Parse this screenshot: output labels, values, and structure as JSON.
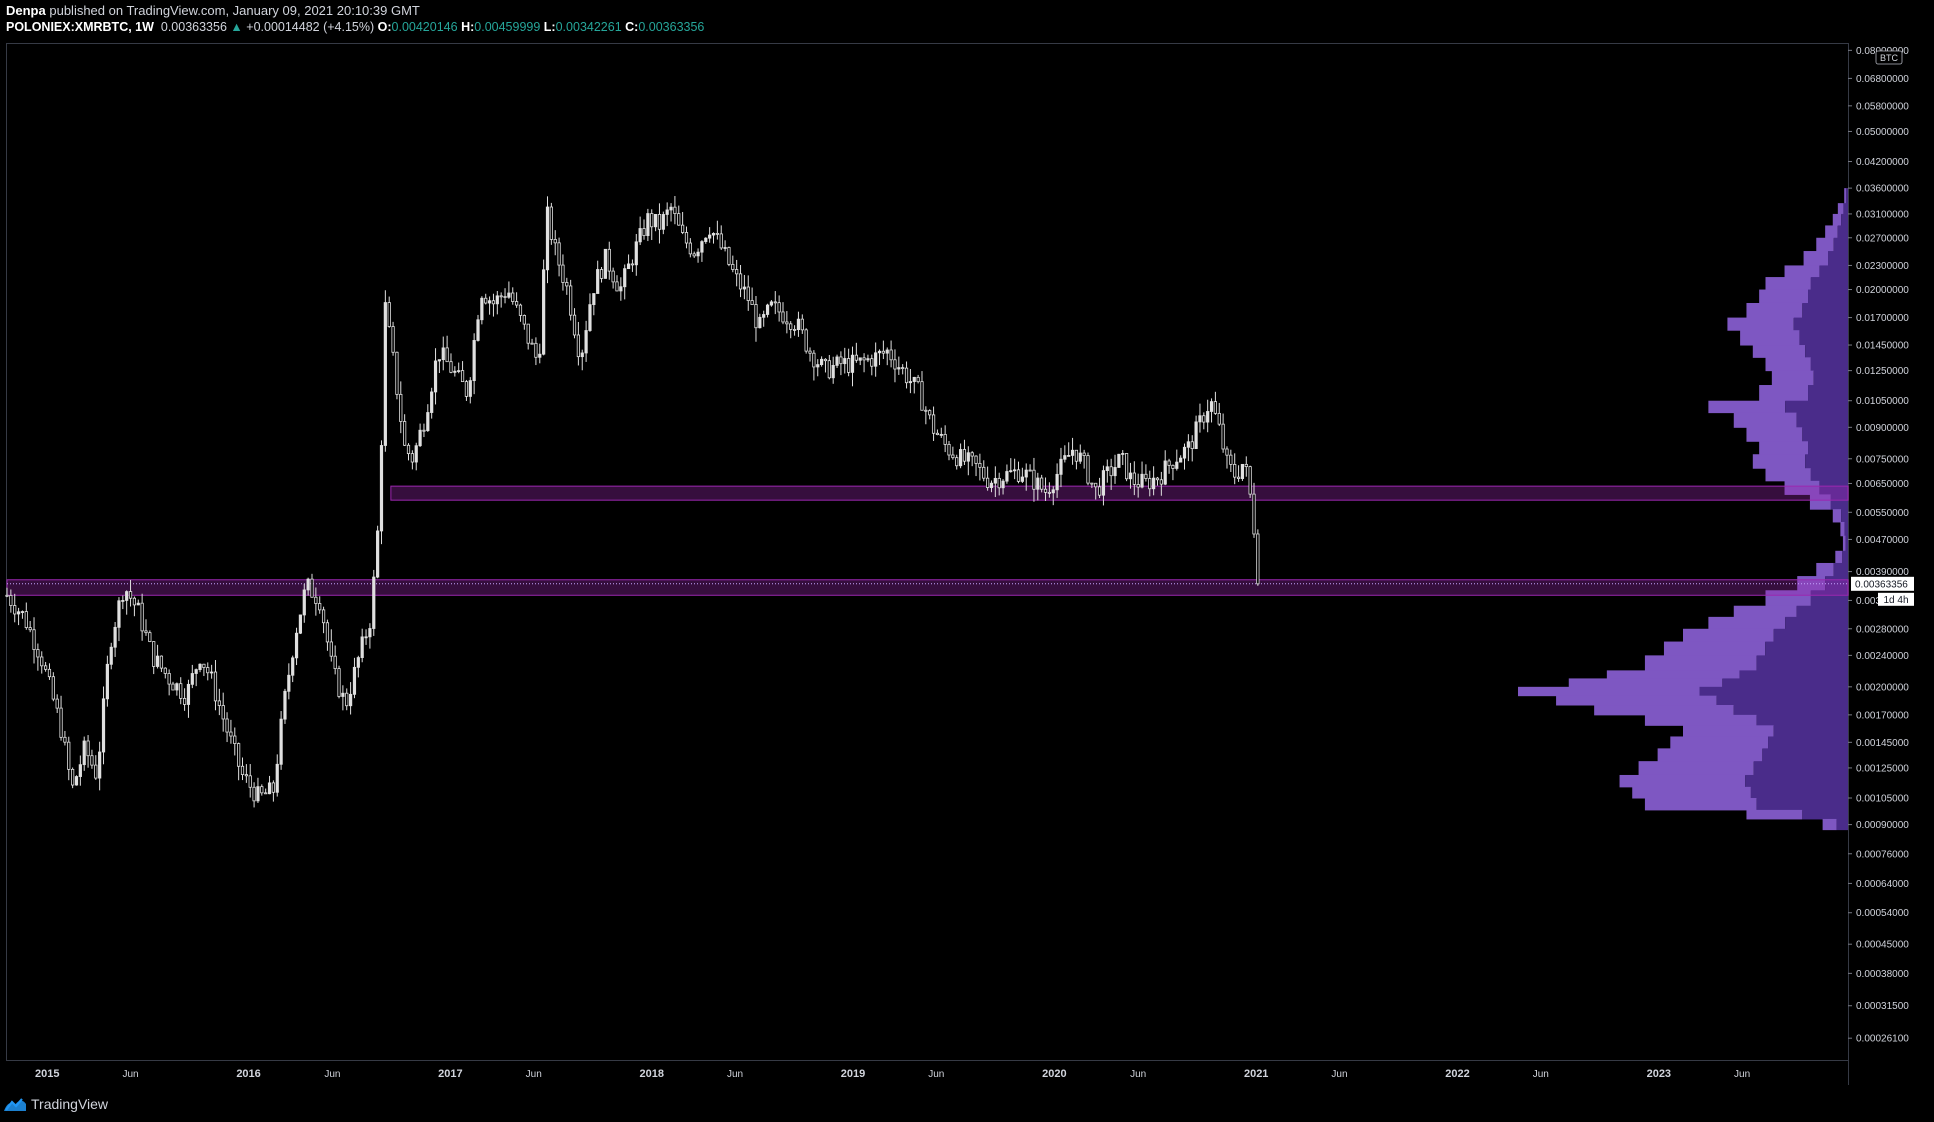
{
  "header": {
    "author": "Denpa",
    "published_text": "published on TradingView.com, January 09, 2021 20:10:39 GMT",
    "symbol": "POLONIEX:XMRBTC, 1W",
    "last": "0.00363356",
    "change_arrow": "▲",
    "change": "+0.00014482 (+4.15%)",
    "o_label": "O:",
    "o_value": "0.00420146",
    "h_label": "H:",
    "h_value": "0.00459999",
    "l_label": "L:",
    "l_value": "0.00342261",
    "c_label": "C:",
    "c_value": "0.00363356"
  },
  "footer": {
    "brand": "TradingView"
  },
  "colors": {
    "background": "#000000",
    "candle": "#e0e0e0",
    "zone": "#9c27b0",
    "volume_profile": "#7e57c2",
    "volume_profile_dark": "#4a2c8a",
    "accent_green": "#26a69a"
  },
  "chart_data": {
    "type": "candlestick",
    "title": "",
    "xlabel": "",
    "ylabel": "",
    "y_scale": "log",
    "ylim": [
      0.00023,
      0.083
    ],
    "currency_badge": "BTC",
    "y_ticks": [
      "0.08000000",
      "0.06800000",
      "0.05800000",
      "0.05000000",
      "0.04200000",
      "0.03600000",
      "0.03100000",
      "0.02700000",
      "0.02300000",
      "0.02000000",
      "0.01700000",
      "0.01450000",
      "0.01250000",
      "0.01050000",
      "0.00900000",
      "0.00750000",
      "0.00650000",
      "0.00550000",
      "0.00470000",
      "0.00390000",
      "0.00330000",
      "0.00280000",
      "0.00240000",
      "0.00200000",
      "0.00170000",
      "0.00145000",
      "0.00125000",
      "0.00105000",
      "0.00090000",
      "0.00076000",
      "0.00064000",
      "0.00054000",
      "0.00045000",
      "0.00038000",
      "0.00031500",
      "0.00026100"
    ],
    "x_ticks": [
      {
        "label": "2015",
        "date": "2015-01-01"
      },
      {
        "label": "Jun",
        "date": "2015-06-01"
      },
      {
        "label": "2016",
        "date": "2016-01-01"
      },
      {
        "label": "Jun",
        "date": "2016-06-01"
      },
      {
        "label": "2017",
        "date": "2017-01-01"
      },
      {
        "label": "Jun",
        "date": "2017-06-01"
      },
      {
        "label": "2018",
        "date": "2018-01-01"
      },
      {
        "label": "Jun",
        "date": "2018-06-01"
      },
      {
        "label": "2019",
        "date": "2019-01-01"
      },
      {
        "label": "Jun",
        "date": "2019-06-01"
      },
      {
        "label": "2020",
        "date": "2020-01-01"
      },
      {
        "label": "Jun",
        "date": "2020-06-01"
      },
      {
        "label": "2021",
        "date": "2021-01-01"
      },
      {
        "label": "Jun",
        "date": "2021-06-01"
      },
      {
        "label": "2022",
        "date": "2022-01-01"
      },
      {
        "label": "Jun",
        "date": "2022-06-01"
      },
      {
        "label": "2023",
        "date": "2023-01-01"
      },
      {
        "label": "Jun",
        "date": "2023-06-01"
      }
    ],
    "xlim": [
      "2014-10-20",
      "2023-12-10"
    ],
    "last_price": {
      "label": "0.00363356",
      "value": 0.00363356
    },
    "countdown": {
      "label": "1d 4h"
    },
    "zones": [
      {
        "start": "2016-09-15",
        "end": "2023-12-10",
        "low": 0.0059,
        "high": 0.0064
      },
      {
        "start": "2014-10-20",
        "end": "2023-12-10",
        "low": 0.0034,
        "high": 0.00372
      }
    ],
    "price_path": [
      [
        "2014-10-20",
        0.0034
      ],
      [
        "2014-11-20",
        0.003
      ],
      [
        "2014-12-20",
        0.0024
      ],
      [
        "2015-01-25",
        0.0016
      ],
      [
        "2015-02-15",
        0.0011
      ],
      [
        "2015-03-10",
        0.0014
      ],
      [
        "2015-04-01",
        0.0012
      ],
      [
        "2015-04-25",
        0.0026
      ],
      [
        "2015-05-20",
        0.0036
      ],
      [
        "2015-06-15",
        0.0031
      ],
      [
        "2015-07-10",
        0.0024
      ],
      [
        "2015-08-10",
        0.0021
      ],
      [
        "2015-09-10",
        0.0019
      ],
      [
        "2015-10-05",
        0.0024
      ],
      [
        "2015-10-25",
        0.0021
      ],
      [
        "2015-11-20",
        0.0016
      ],
      [
        "2015-12-20",
        0.0012
      ],
      [
        "2016-01-20",
        0.00105
      ],
      [
        "2016-02-15",
        0.0011
      ],
      [
        "2016-03-05",
        0.0018
      ],
      [
        "2016-03-25",
        0.0027
      ],
      [
        "2016-04-15",
        0.0036
      ],
      [
        "2016-05-10",
        0.0033
      ],
      [
        "2016-06-01",
        0.0022
      ],
      [
        "2016-06-25",
        0.0018
      ],
      [
        "2016-07-20",
        0.0024
      ],
      [
        "2016-08-10",
        0.003
      ],
      [
        "2016-08-25",
        0.0055
      ],
      [
        "2016-09-05",
        0.018
      ],
      [
        "2016-09-20",
        0.013
      ],
      [
        "2016-10-10",
        0.008
      ],
      [
        "2016-10-25",
        0.0075
      ],
      [
        "2016-11-15",
        0.0095
      ],
      [
        "2016-12-10",
        0.014
      ],
      [
        "2017-01-05",
        0.0125
      ],
      [
        "2017-02-01",
        0.011
      ],
      [
        "2017-02-25",
        0.02
      ],
      [
        "2017-03-20",
        0.0185
      ],
      [
        "2017-04-15",
        0.02
      ],
      [
        "2017-05-10",
        0.0165
      ],
      [
        "2017-06-10",
        0.013
      ],
      [
        "2017-06-25",
        0.031
      ],
      [
        "2017-07-10",
        0.025
      ],
      [
        "2017-08-01",
        0.02
      ],
      [
        "2017-08-25",
        0.0135
      ],
      [
        "2017-09-15",
        0.02
      ],
      [
        "2017-10-10",
        0.024
      ],
      [
        "2017-11-05",
        0.02
      ],
      [
        "2017-12-01",
        0.025
      ],
      [
        "2017-12-25",
        0.03
      ],
      [
        "2018-01-15",
        0.029
      ],
      [
        "2018-02-05",
        0.032
      ],
      [
        "2018-02-25",
        0.027
      ],
      [
        "2018-03-20",
        0.025
      ],
      [
        "2018-04-15",
        0.029
      ],
      [
        "2018-05-10",
        0.025
      ],
      [
        "2018-06-01",
        0.0215
      ],
      [
        "2018-06-25",
        0.019
      ],
      [
        "2018-07-15",
        0.016
      ],
      [
        "2018-08-05",
        0.018
      ],
      [
        "2018-08-25",
        0.0175
      ],
      [
        "2018-09-20",
        0.0165
      ],
      [
        "2018-10-15",
        0.014
      ],
      [
        "2018-11-10",
        0.0125
      ],
      [
        "2018-12-10",
        0.013
      ],
      [
        "2019-01-10",
        0.013
      ],
      [
        "2019-02-10",
        0.0135
      ],
      [
        "2019-03-05",
        0.014
      ],
      [
        "2019-04-01",
        0.0125
      ],
      [
        "2019-05-01",
        0.011
      ],
      [
        "2019-05-25",
        0.009
      ],
      [
        "2019-06-20",
        0.008
      ],
      [
        "2019-07-15",
        0.0075
      ],
      [
        "2019-08-10",
        0.0072
      ],
      [
        "2019-09-05",
        0.0066
      ],
      [
        "2019-10-01",
        0.0068
      ],
      [
        "2019-11-01",
        0.007
      ],
      [
        "2019-11-25",
        0.0066
      ],
      [
        "2019-12-15",
        0.0062
      ],
      [
        "2020-01-10",
        0.007
      ],
      [
        "2020-02-05",
        0.008
      ],
      [
        "2020-02-25",
        0.0072
      ],
      [
        "2020-03-15",
        0.0062
      ],
      [
        "2020-04-05",
        0.0068
      ],
      [
        "2020-05-01",
        0.0075
      ],
      [
        "2020-05-20",
        0.0066
      ],
      [
        "2020-06-15",
        0.0065
      ],
      [
        "2020-07-10",
        0.0068
      ],
      [
        "2020-08-05",
        0.0075
      ],
      [
        "2020-09-01",
        0.008
      ],
      [
        "2020-09-25",
        0.0095
      ],
      [
        "2020-10-10",
        0.0105
      ],
      [
        "2020-10-25",
        0.009
      ],
      [
        "2020-11-10",
        0.0072
      ],
      [
        "2020-11-25",
        0.0068
      ],
      [
        "2020-12-10",
        0.0074
      ],
      [
        "2020-12-20",
        0.0062
      ],
      [
        "2020-12-27",
        0.0052
      ],
      [
        "2021-01-03",
        0.0042
      ],
      [
        "2021-01-09",
        0.00363356
      ]
    ],
    "volume_profile": [
      [
        0.036,
        0.3
      ],
      [
        0.033,
        0.8
      ],
      [
        0.031,
        1.2
      ],
      [
        0.029,
        1.8
      ],
      [
        0.027,
        2.5
      ],
      [
        0.025,
        3.5
      ],
      [
        0.023,
        5.0
      ],
      [
        0.0215,
        6.5
      ],
      [
        0.02,
        7.0
      ],
      [
        0.0185,
        8.0
      ],
      [
        0.017,
        9.5
      ],
      [
        0.0158,
        8.5
      ],
      [
        0.0145,
        7.5
      ],
      [
        0.0135,
        6.5
      ],
      [
        0.0125,
        6.0
      ],
      [
        0.0115,
        7.0
      ],
      [
        0.0105,
        11.0
      ],
      [
        0.0098,
        9.0
      ],
      [
        0.009,
        8.0
      ],
      [
        0.0083,
        7.0
      ],
      [
        0.0077,
        7.5
      ],
      [
        0.0071,
        6.5
      ],
      [
        0.0066,
        5.0
      ],
      [
        0.0061,
        3.0
      ],
      [
        0.0056,
        1.2
      ],
      [
        0.0052,
        0.6
      ],
      [
        0.0048,
        0.4
      ],
      [
        0.0044,
        1.0
      ],
      [
        0.0041,
        2.5
      ],
      [
        0.0038,
        4.0
      ],
      [
        0.0035,
        6.5
      ],
      [
        0.0032,
        9.0
      ],
      [
        0.003,
        11.0
      ],
      [
        0.0028,
        13.0
      ],
      [
        0.0026,
        14.5
      ],
      [
        0.0024,
        16.0
      ],
      [
        0.0022,
        19.0
      ],
      [
        0.0021,
        22.0
      ],
      [
        0.002,
        26.0
      ],
      [
        0.0019,
        23.0
      ],
      [
        0.0018,
        20.0
      ],
      [
        0.0017,
        16.0
      ],
      [
        0.0016,
        13.0
      ],
      [
        0.0015,
        14.0
      ],
      [
        0.0014,
        15.0
      ],
      [
        0.0013,
        16.5
      ],
      [
        0.0012,
        18.0
      ],
      [
        0.00112,
        17.0
      ],
      [
        0.00105,
        16.0
      ],
      [
        0.00098,
        8.0
      ],
      [
        0.00093,
        2.0
      ]
    ]
  }
}
